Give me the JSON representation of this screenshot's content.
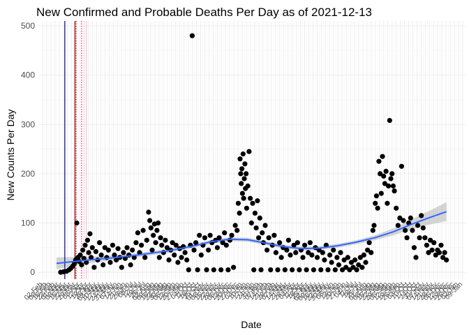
{
  "chart_data": {
    "type": "scatter",
    "title": "New Confirmed and Probable Deaths Per Day as of 2021-12-13",
    "xlabel": "Date",
    "ylabel": "New Counts Per Day",
    "ylim": [
      0,
      500
    ],
    "yticks": [
      0,
      100,
      200,
      300,
      400,
      500
    ],
    "xlim": [
      "2020-02-01",
      "2022-01-15"
    ],
    "grid": true,
    "point_color": "#000000",
    "smooth_color": "#3366ff",
    "band_color": "#999999",
    "xtick_labels": [
      "02-Feb",
      "09-Feb",
      "16-Feb",
      "23-Feb",
      "01-Mar",
      "08-Mar",
      "15-Mar",
      "22-Mar",
      "29-Mar",
      "05-Apr",
      "12-Apr",
      "19-Apr",
      "26-Apr",
      "03-May",
      "10-May",
      "17-May",
      "24-May",
      "31-May",
      "07-Jun",
      "14-Jun",
      "21-Jun",
      "28-Jun",
      "05-Jul",
      "12-Jul",
      "19-Jul",
      "26-Jul",
      "02-Aug",
      "09-Aug",
      "16-Aug",
      "23-Aug",
      "30-Aug",
      "06-Sep",
      "13-Sep",
      "20-Sep",
      "27-Sep",
      "04-Oct",
      "11-Oct",
      "18-Oct",
      "25-Oct",
      "01-Nov",
      "08-Nov",
      "15-Nov",
      "22-Nov",
      "29-Nov",
      "06-Dec",
      "13-Dec",
      "20-Dec",
      "27-Dec",
      "03-Jan",
      "10-Jan",
      "17-Jan",
      "24-Jan",
      "31-Jan",
      "07-Feb",
      "14-Feb",
      "21-Feb",
      "28-Feb",
      "07-Mar",
      "14-Mar",
      "21-Mar",
      "28-Mar",
      "04-Apr",
      "11-Apr",
      "18-Apr",
      "25-Apr",
      "02-May",
      "09-May",
      "16-May",
      "23-May",
      "30-May",
      "06-Jun",
      "13-Jun",
      "20-Jun",
      "27-Jun",
      "04-Jul",
      "11-Jul",
      "18-Jul",
      "25-Jul",
      "01-Aug",
      "08-Aug",
      "15-Aug",
      "22-Aug",
      "29-Aug",
      "05-Sep",
      "12-Sep",
      "19-Sep",
      "26-Sep",
      "03-Oct",
      "10-Oct",
      "17-Oct",
      "24-Oct",
      "31-Oct",
      "07-Nov",
      "14-Nov",
      "21-Nov",
      "28-Nov",
      "05-Dec",
      "12-Dec",
      "19-Dec",
      "26-Dec",
      "02-Jan",
      "09-Jan"
    ],
    "reference_lines": [
      {
        "date": "2020-03-15",
        "color": "#00008b",
        "style": "solid"
      },
      {
        "date": "2020-04-01",
        "color": "#8b0000",
        "style": "solid"
      },
      {
        "date": "2020-04-03",
        "color": "#ff0000",
        "style": "dotted"
      },
      {
        "date": "2020-04-12",
        "color": "#cc3355",
        "style": "dotted"
      },
      {
        "date": "2020-04-16",
        "color": "#ffaacc",
        "style": "dotted"
      },
      {
        "date": "2020-04-20",
        "color": "#f1c0d8",
        "style": "solid"
      }
    ],
    "smooth": [
      {
        "x": "2020-03-01",
        "y": 18,
        "lo": 6,
        "hi": 30
      },
      {
        "x": "2020-04-15",
        "y": 24,
        "lo": 17,
        "hi": 31
      },
      {
        "x": "2020-06-01",
        "y": 29,
        "lo": 24,
        "hi": 34
      },
      {
        "x": "2020-07-15",
        "y": 35,
        "lo": 31,
        "hi": 39
      },
      {
        "x": "2020-09-01",
        "y": 43,
        "lo": 39,
        "hi": 47
      },
      {
        "x": "2020-10-15",
        "y": 53,
        "lo": 49,
        "hi": 57
      },
      {
        "x": "2020-11-15",
        "y": 62,
        "lo": 58,
        "hi": 66
      },
      {
        "x": "2020-12-15",
        "y": 67,
        "lo": 63,
        "hi": 71
      },
      {
        "x": "2021-01-15",
        "y": 66,
        "lo": 62,
        "hi": 70
      },
      {
        "x": "2021-02-15",
        "y": 59,
        "lo": 55,
        "hi": 63
      },
      {
        "x": "2021-03-15",
        "y": 52,
        "lo": 48,
        "hi": 56
      },
      {
        "x": "2021-04-15",
        "y": 48,
        "lo": 44,
        "hi": 52
      },
      {
        "x": "2021-05-15",
        "y": 49,
        "lo": 45,
        "hi": 53
      },
      {
        "x": "2021-06-15",
        "y": 54,
        "lo": 50,
        "hi": 58
      },
      {
        "x": "2021-07-15",
        "y": 61,
        "lo": 57,
        "hi": 65
      },
      {
        "x": "2021-08-15",
        "y": 70,
        "lo": 65,
        "hi": 75
      },
      {
        "x": "2021-09-15",
        "y": 82,
        "lo": 75,
        "hi": 89
      },
      {
        "x": "2021-10-15",
        "y": 97,
        "lo": 87,
        "hi": 107
      },
      {
        "x": "2021-11-15",
        "y": 111,
        "lo": 97,
        "hi": 125
      },
      {
        "x": "2021-12-13",
        "y": 123,
        "lo": 104,
        "hi": 142
      }
    ],
    "points": [
      {
        "x": "2020-03-08",
        "y": 0
      },
      {
        "x": "2020-03-13",
        "y": 1
      },
      {
        "x": "2020-03-18",
        "y": 2
      },
      {
        "x": "2020-03-22",
        "y": 5
      },
      {
        "x": "2020-03-25",
        "y": 8
      },
      {
        "x": "2020-03-28",
        "y": 12
      },
      {
        "x": "2020-03-31",
        "y": 18
      },
      {
        "x": "2020-04-02",
        "y": 25
      },
      {
        "x": "2020-04-04",
        "y": 100
      },
      {
        "x": "2020-04-06",
        "y": 30
      },
      {
        "x": "2020-04-08",
        "y": 22
      },
      {
        "x": "2020-04-10",
        "y": 35
      },
      {
        "x": "2020-04-12",
        "y": 15
      },
      {
        "x": "2020-04-14",
        "y": 45
      },
      {
        "x": "2020-04-16",
        "y": 28
      },
      {
        "x": "2020-04-18",
        "y": 55
      },
      {
        "x": "2020-04-20",
        "y": 20
      },
      {
        "x": "2020-04-22",
        "y": 65
      },
      {
        "x": "2020-04-24",
        "y": 40
      },
      {
        "x": "2020-04-26",
        "y": 78
      },
      {
        "x": "2020-04-28",
        "y": 30
      },
      {
        "x": "2020-04-30",
        "y": 50
      },
      {
        "x": "2020-05-03",
        "y": 10
      },
      {
        "x": "2020-05-06",
        "y": 42
      },
      {
        "x": "2020-05-09",
        "y": 25
      },
      {
        "x": "2020-05-12",
        "y": 60
      },
      {
        "x": "2020-05-15",
        "y": 35
      },
      {
        "x": "2020-05-18",
        "y": 15
      },
      {
        "x": "2020-05-21",
        "y": 50
      },
      {
        "x": "2020-05-24",
        "y": 30
      },
      {
        "x": "2020-05-27",
        "y": 45
      },
      {
        "x": "2020-05-30",
        "y": 20
      },
      {
        "x": "2020-06-03",
        "y": 55
      },
      {
        "x": "2020-06-06",
        "y": 35
      },
      {
        "x": "2020-06-09",
        "y": 25
      },
      {
        "x": "2020-06-12",
        "y": 48
      },
      {
        "x": "2020-06-15",
        "y": 30
      },
      {
        "x": "2020-06-18",
        "y": 10
      },
      {
        "x": "2020-06-21",
        "y": 40
      },
      {
        "x": "2020-06-24",
        "y": 28
      },
      {
        "x": "2020-06-27",
        "y": 50
      },
      {
        "x": "2020-06-30",
        "y": 35
      },
      {
        "x": "2020-07-03",
        "y": 15
      },
      {
        "x": "2020-07-06",
        "y": 45
      },
      {
        "x": "2020-07-09",
        "y": 30
      },
      {
        "x": "2020-07-12",
        "y": 60
      },
      {
        "x": "2020-07-15",
        "y": 80
      },
      {
        "x": "2020-07-18",
        "y": 40
      },
      {
        "x": "2020-07-21",
        "y": 55
      },
      {
        "x": "2020-07-24",
        "y": 85
      },
      {
        "x": "2020-07-27",
        "y": 30
      },
      {
        "x": "2020-07-30",
        "y": 65
      },
      {
        "x": "2020-08-02",
        "y": 122
      },
      {
        "x": "2020-08-04",
        "y": 105
      },
      {
        "x": "2020-08-06",
        "y": 90
      },
      {
        "x": "2020-08-08",
        "y": 45
      },
      {
        "x": "2020-08-10",
        "y": 75
      },
      {
        "x": "2020-08-12",
        "y": 98
      },
      {
        "x": "2020-08-14",
        "y": 60
      },
      {
        "x": "2020-08-16",
        "y": 85
      },
      {
        "x": "2020-08-18",
        "y": 100
      },
      {
        "x": "2020-08-20",
        "y": 30
      },
      {
        "x": "2020-08-22",
        "y": 70
      },
      {
        "x": "2020-08-24",
        "y": 55
      },
      {
        "x": "2020-08-27",
        "y": 40
      },
      {
        "x": "2020-08-30",
        "y": 65
      },
      {
        "x": "2020-09-02",
        "y": 50
      },
      {
        "x": "2020-09-05",
        "y": 25
      },
      {
        "x": "2020-09-08",
        "y": 45
      },
      {
        "x": "2020-09-11",
        "y": 60
      },
      {
        "x": "2020-09-14",
        "y": 35
      },
      {
        "x": "2020-09-17",
        "y": 55
      },
      {
        "x": "2020-09-20",
        "y": 20
      },
      {
        "x": "2020-09-23",
        "y": 48
      },
      {
        "x": "2020-09-26",
        "y": 30
      },
      {
        "x": "2020-09-29",
        "y": 52
      },
      {
        "x": "2020-10-02",
        "y": 40
      },
      {
        "x": "2020-10-05",
        "y": 25
      },
      {
        "x": "2020-10-08",
        "y": 5
      },
      {
        "x": "2020-10-11",
        "y": 55
      },
      {
        "x": "2020-10-14",
        "y": 480
      },
      {
        "x": "2020-10-17",
        "y": 45
      },
      {
        "x": "2020-10-20",
        "y": 60
      },
      {
        "x": "2020-10-23",
        "y": 5
      },
      {
        "x": "2020-10-26",
        "y": 75
      },
      {
        "x": "2020-10-29",
        "y": 35
      },
      {
        "x": "2020-11-01",
        "y": 55
      },
      {
        "x": "2020-11-04",
        "y": 70
      },
      {
        "x": "2020-11-07",
        "y": 5
      },
      {
        "x": "2020-11-10",
        "y": 45
      },
      {
        "x": "2020-11-13",
        "y": 75
      },
      {
        "x": "2020-11-16",
        "y": 60
      },
      {
        "x": "2020-11-19",
        "y": 5
      },
      {
        "x": "2020-11-22",
        "y": 65
      },
      {
        "x": "2020-11-25",
        "y": 50
      },
      {
        "x": "2020-11-28",
        "y": 70
      },
      {
        "x": "2020-12-01",
        "y": 5
      },
      {
        "x": "2020-12-04",
        "y": 60
      },
      {
        "x": "2020-12-07",
        "y": 80
      },
      {
        "x": "2020-12-10",
        "y": 55
      },
      {
        "x": "2020-12-13",
        "y": 5
      },
      {
        "x": "2020-12-16",
        "y": 65
      },
      {
        "x": "2020-12-19",
        "y": 75
      },
      {
        "x": "2020-12-22",
        "y": 10
      },
      {
        "x": "2020-12-25",
        "y": 95
      },
      {
        "x": "2020-12-28",
        "y": 85
      },
      {
        "x": "2020-12-30",
        "y": 140
      },
      {
        "x": "2021-01-01",
        "y": 120
      },
      {
        "x": "2021-01-02",
        "y": 230
      },
      {
        "x": "2021-01-03",
        "y": 200
      },
      {
        "x": "2021-01-04",
        "y": 180
      },
      {
        "x": "2021-01-05",
        "y": 210
      },
      {
        "x": "2021-01-06",
        "y": 160
      },
      {
        "x": "2021-01-07",
        "y": 240
      },
      {
        "x": "2021-01-08",
        "y": 150
      },
      {
        "x": "2021-01-09",
        "y": 190
      },
      {
        "x": "2021-01-10",
        "y": 220
      },
      {
        "x": "2021-01-11",
        "y": 170
      },
      {
        "x": "2021-01-12",
        "y": 200
      },
      {
        "x": "2021-01-13",
        "y": 130
      },
      {
        "x": "2021-01-15",
        "y": 175
      },
      {
        "x": "2021-01-17",
        "y": 245
      },
      {
        "x": "2021-01-19",
        "y": 150
      },
      {
        "x": "2021-01-21",
        "y": 100
      },
      {
        "x": "2021-01-23",
        "y": 140
      },
      {
        "x": "2021-01-25",
        "y": 5
      },
      {
        "x": "2021-01-27",
        "y": 120
      },
      {
        "x": "2021-01-29",
        "y": 90
      },
      {
        "x": "2021-01-31",
        "y": 145
      },
      {
        "x": "2021-02-02",
        "y": 70
      },
      {
        "x": "2021-02-04",
        "y": 110
      },
      {
        "x": "2021-02-06",
        "y": 5
      },
      {
        "x": "2021-02-08",
        "y": 80
      },
      {
        "x": "2021-02-10",
        "y": 60
      },
      {
        "x": "2021-02-13",
        "y": 95
      },
      {
        "x": "2021-02-16",
        "y": 45
      },
      {
        "x": "2021-02-19",
        "y": 70
      },
      {
        "x": "2021-02-22",
        "y": 5
      },
      {
        "x": "2021-02-25",
        "y": 55
      },
      {
        "x": "2021-02-28",
        "y": 75
      },
      {
        "x": "2021-03-03",
        "y": 40
      },
      {
        "x": "2021-03-06",
        "y": 5
      },
      {
        "x": "2021-03-09",
        "y": 60
      },
      {
        "x": "2021-03-12",
        "y": 30
      },
      {
        "x": "2021-03-15",
        "y": 50
      },
      {
        "x": "2021-03-18",
        "y": 5
      },
      {
        "x": "2021-03-21",
        "y": 45
      },
      {
        "x": "2021-03-24",
        "y": 65
      },
      {
        "x": "2021-03-27",
        "y": 35
      },
      {
        "x": "2021-03-30",
        "y": 5
      },
      {
        "x": "2021-04-02",
        "y": 55
      },
      {
        "x": "2021-04-05",
        "y": 40
      },
      {
        "x": "2021-04-08",
        "y": 60
      },
      {
        "x": "2021-04-11",
        "y": 5
      },
      {
        "x": "2021-04-14",
        "y": 45
      },
      {
        "x": "2021-04-17",
        "y": 30
      },
      {
        "x": "2021-04-20",
        "y": 55
      },
      {
        "x": "2021-04-23",
        "y": 5
      },
      {
        "x": "2021-04-26",
        "y": 40
      },
      {
        "x": "2021-04-29",
        "y": 60
      },
      {
        "x": "2021-05-02",
        "y": 35
      },
      {
        "x": "2021-05-05",
        "y": 5
      },
      {
        "x": "2021-05-08",
        "y": 50
      },
      {
        "x": "2021-05-11",
        "y": 30
      },
      {
        "x": "2021-05-14",
        "y": 45
      },
      {
        "x": "2021-05-17",
        "y": 5
      },
      {
        "x": "2021-05-20",
        "y": 40
      },
      {
        "x": "2021-05-23",
        "y": 25
      },
      {
        "x": "2021-05-26",
        "y": 55
      },
      {
        "x": "2021-05-29",
        "y": 5
      },
      {
        "x": "2021-06-01",
        "y": 35
      },
      {
        "x": "2021-06-04",
        "y": 20
      },
      {
        "x": "2021-06-07",
        "y": 45
      },
      {
        "x": "2021-06-10",
        "y": 5
      },
      {
        "x": "2021-06-13",
        "y": 30
      },
      {
        "x": "2021-06-16",
        "y": 15
      },
      {
        "x": "2021-06-19",
        "y": 40
      },
      {
        "x": "2021-06-22",
        "y": 5
      },
      {
        "x": "2021-06-25",
        "y": 25
      },
      {
        "x": "2021-06-28",
        "y": 10
      },
      {
        "x": "2021-07-01",
        "y": 30
      },
      {
        "x": "2021-07-04",
        "y": 5
      },
      {
        "x": "2021-07-07",
        "y": 20
      },
      {
        "x": "2021-07-10",
        "y": 10
      },
      {
        "x": "2021-07-13",
        "y": 25
      },
      {
        "x": "2021-07-16",
        "y": 5
      },
      {
        "x": "2021-07-19",
        "y": 15
      },
      {
        "x": "2021-07-22",
        "y": 30
      },
      {
        "x": "2021-07-25",
        "y": 10
      },
      {
        "x": "2021-07-28",
        "y": 35
      },
      {
        "x": "2021-07-31",
        "y": 20
      },
      {
        "x": "2021-08-03",
        "y": 45
      },
      {
        "x": "2021-08-06",
        "y": 60
      },
      {
        "x": "2021-08-09",
        "y": 40
      },
      {
        "x": "2021-08-12",
        "y": 85
      },
      {
        "x": "2021-08-14",
        "y": 95
      },
      {
        "x": "2021-08-16",
        "y": 140
      },
      {
        "x": "2021-08-18",
        "y": 155
      },
      {
        "x": "2021-08-20",
        "y": 130
      },
      {
        "x": "2021-08-22",
        "y": 225
      },
      {
        "x": "2021-08-24",
        "y": 200
      },
      {
        "x": "2021-08-26",
        "y": 160
      },
      {
        "x": "2021-08-28",
        "y": 235
      },
      {
        "x": "2021-08-30",
        "y": 195
      },
      {
        "x": "2021-09-01",
        "y": 180
      },
      {
        "x": "2021-09-03",
        "y": 205
      },
      {
        "x": "2021-09-05",
        "y": 140
      },
      {
        "x": "2021-09-07",
        "y": 175
      },
      {
        "x": "2021-09-09",
        "y": 308
      },
      {
        "x": "2021-09-11",
        "y": 190
      },
      {
        "x": "2021-09-13",
        "y": 200
      },
      {
        "x": "2021-09-15",
        "y": 175
      },
      {
        "x": "2021-09-17",
        "y": 165
      },
      {
        "x": "2021-09-20",
        "y": 130
      },
      {
        "x": "2021-09-23",
        "y": 95
      },
      {
        "x": "2021-09-26",
        "y": 110
      },
      {
        "x": "2021-09-29",
        "y": 215
      },
      {
        "x": "2021-10-02",
        "y": 105
      },
      {
        "x": "2021-10-05",
        "y": 85
      },
      {
        "x": "2021-10-08",
        "y": 70
      },
      {
        "x": "2021-10-11",
        "y": 100
      },
      {
        "x": "2021-10-14",
        "y": 110
      },
      {
        "x": "2021-10-17",
        "y": 85
      },
      {
        "x": "2021-10-20",
        "y": 50
      },
      {
        "x": "2021-10-23",
        "y": 30
      },
      {
        "x": "2021-10-26",
        "y": 95
      },
      {
        "x": "2021-10-29",
        "y": 70
      },
      {
        "x": "2021-11-01",
        "y": 115
      },
      {
        "x": "2021-11-04",
        "y": 90
      },
      {
        "x": "2021-11-07",
        "y": 70
      },
      {
        "x": "2021-11-10",
        "y": 55
      },
      {
        "x": "2021-11-13",
        "y": 40
      },
      {
        "x": "2021-11-16",
        "y": 65
      },
      {
        "x": "2021-11-19",
        "y": 45
      },
      {
        "x": "2021-11-22",
        "y": 60
      },
      {
        "x": "2021-11-25",
        "y": 35
      },
      {
        "x": "2021-11-28",
        "y": 45
      },
      {
        "x": "2021-12-01",
        "y": 40
      },
      {
        "x": "2021-12-04",
        "y": 55
      },
      {
        "x": "2021-12-07",
        "y": 30
      },
      {
        "x": "2021-12-10",
        "y": 40
      },
      {
        "x": "2021-12-13",
        "y": 25
      }
    ]
  }
}
